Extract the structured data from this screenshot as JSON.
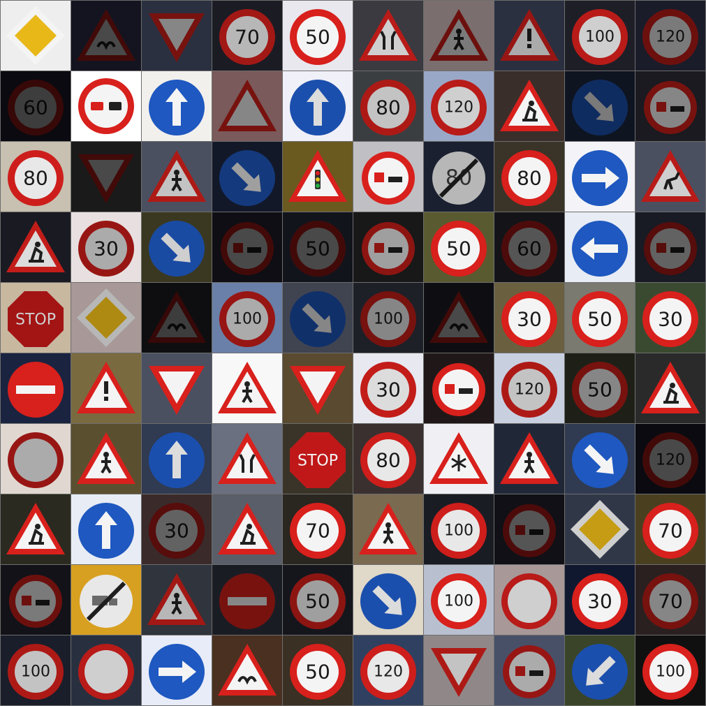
{
  "grid": {
    "rows": 10,
    "cols": 10,
    "cells": [
      {
        "type": "priority",
        "bg": "#eeeeee",
        "b": 1.0
      },
      {
        "type": "warning",
        "sym": "bumps",
        "bg": "#141420",
        "b": 0.3
      },
      {
        "type": "yield",
        "bg": "#2a3040",
        "b": 0.55
      },
      {
        "type": "speed",
        "text": "70",
        "bg": "#1b1b24",
        "b": 0.75
      },
      {
        "type": "speed",
        "text": "50",
        "bg": "#e8e8ee",
        "b": 1.0
      },
      {
        "type": "warning",
        "sym": "narrow",
        "bg": "#3a3a40",
        "b": 0.85
      },
      {
        "type": "warning",
        "sym": "person",
        "bg": "#7a6e6e",
        "b": 0.5
      },
      {
        "type": "warning",
        "sym": "!",
        "bg": "#2a3040",
        "b": 0.7
      },
      {
        "type": "speed",
        "text": "100",
        "bg": "#1e1e26",
        "b": 0.85
      },
      {
        "type": "speed",
        "text": "120",
        "bg": "#1a1c2a",
        "b": 0.5
      },
      {
        "type": "speed",
        "text": "60",
        "bg": "#0a0a10",
        "b": 0.25
      },
      {
        "type": "nopass",
        "bg": "#ffffff",
        "b": 1.0
      },
      {
        "type": "blue-arrow",
        "dir": "up",
        "bg": "#f2f0ec",
        "b": 1.0
      },
      {
        "type": "warning",
        "sym": "",
        "bg": "#7a5a5a",
        "b": 0.55
      },
      {
        "type": "blue-arrow",
        "dir": "up",
        "bg": "#f0f0f8",
        "b": 0.9
      },
      {
        "type": "speed",
        "text": "80",
        "bg": "#3a3e40",
        "b": 0.8
      },
      {
        "type": "speed",
        "text": "120",
        "bg": "#9aa8c8",
        "b": 0.85
      },
      {
        "type": "warning",
        "sym": "works",
        "bg": "#3a2e2a",
        "b": 1.0
      },
      {
        "type": "blue-arrow",
        "dir": "down-right",
        "bg": "#0e1420",
        "b": 0.5
      },
      {
        "type": "truck-nopass",
        "bg": "#1a1a20",
        "b": 0.55
      },
      {
        "type": "speed",
        "text": "80",
        "bg": "#c8c0b0",
        "b": 0.95
      },
      {
        "type": "yield",
        "bg": "#1a1a1a",
        "b": 0.3
      },
      {
        "type": "warning",
        "sym": "person",
        "bg": "#4a5060",
        "b": 0.8
      },
      {
        "type": "blue-arrow",
        "dir": "down-right",
        "bg": "#121828",
        "b": 0.65
      },
      {
        "type": "warning",
        "sym": "signal",
        "bg": "#6a5a20",
        "b": 1.0
      },
      {
        "type": "truck-nopass",
        "bg": "#c0c0c4",
        "b": 1.0
      },
      {
        "type": "end80",
        "bg": "#1a2030",
        "b": 0.75
      },
      {
        "type": "speed",
        "text": "80",
        "bg": "#3a3428",
        "b": 1.0
      },
      {
        "type": "blue-arrow",
        "dir": "right",
        "bg": "#f4f4f8",
        "b": 1.0
      },
      {
        "type": "warning",
        "sym": "deer",
        "bg": "#4a5060",
        "b": 0.85
      },
      {
        "type": "warning",
        "sym": "works",
        "bg": "#1a1a22",
        "b": 0.9
      },
      {
        "type": "speed",
        "text": "30",
        "bg": "#e8e0e0",
        "b": 0.7
      },
      {
        "type": "blue-arrow",
        "dir": "down-right",
        "bg": "#3a3820",
        "b": 0.85
      },
      {
        "type": "truck-nopass",
        "bg": "#0e0e14",
        "b": 0.3
      },
      {
        "type": "speed",
        "text": "50",
        "bg": "#12141c",
        "b": 0.3
      },
      {
        "type": "truck-nopass",
        "bg": "#181818",
        "b": 0.65
      },
      {
        "type": "speed",
        "text": "50",
        "bg": "#5a5a30",
        "b": 1.0
      },
      {
        "type": "speed",
        "text": "60",
        "bg": "#141418",
        "b": 0.35
      },
      {
        "type": "blue-arrow",
        "dir": "left",
        "bg": "#e8ecf4",
        "b": 1.0
      },
      {
        "type": "truck-nopass",
        "bg": "#181a24",
        "b": 0.4
      },
      {
        "type": "stop",
        "text": "STOP",
        "bg": "#c8b8a0",
        "b": 0.85
      },
      {
        "type": "priority",
        "bg": "#a89898",
        "b": 0.75
      },
      {
        "type": "warning",
        "sym": "bumps",
        "bg": "#0e0e10",
        "b": 0.25
      },
      {
        "type": "speed",
        "text": "100",
        "bg": "#6a80a8",
        "b": 0.7
      },
      {
        "type": "blue-arrow",
        "dir": "down-right",
        "bg": "#404450",
        "b": 0.55
      },
      {
        "type": "speed",
        "text": "100",
        "bg": "#1e2028",
        "b": 0.55
      },
      {
        "type": "warning",
        "sym": "bumps",
        "bg": "#0e0e12",
        "b": 0.3
      },
      {
        "type": "speed",
        "text": "30",
        "bg": "#6a6040",
        "b": 1.0
      },
      {
        "type": "speed",
        "text": "50",
        "bg": "#7a7a70",
        "b": 1.0
      },
      {
        "type": "speed",
        "text": "30",
        "bg": "#3a4a30",
        "b": 1.0
      },
      {
        "type": "noentry",
        "bg": "#1a2440",
        "b": 1.0
      },
      {
        "type": "warning",
        "sym": "!",
        "bg": "#7a6a40",
        "b": 1.0
      },
      {
        "type": "yield",
        "bg": "#4a5060",
        "b": 1.0
      },
      {
        "type": "warning",
        "sym": "person",
        "bg": "#f8f8f8",
        "b": 1.0
      },
      {
        "type": "yield",
        "bg": "#5a4a30",
        "b": 1.0
      },
      {
        "type": "speed",
        "text": "30",
        "bg": "#e8e8f0",
        "b": 0.9
      },
      {
        "type": "truck-nopass",
        "bg": "#201818",
        "b": 1.0
      },
      {
        "type": "speed",
        "text": "120",
        "bg": "#c8d0e0",
        "b": 0.8
      },
      {
        "type": "speed",
        "text": "50",
        "bg": "#1e2018",
        "b": 0.55
      },
      {
        "type": "warning",
        "sym": "works",
        "bg": "#2a2a2a",
        "b": 1.0
      },
      {
        "type": "circle-plain",
        "bg": "#e0d8d0",
        "b": 0.7
      },
      {
        "type": "warning",
        "sym": "person",
        "bg": "#5a5030",
        "b": 1.0
      },
      {
        "type": "blue-arrow",
        "dir": "up",
        "bg": "#303a50",
        "b": 0.9
      },
      {
        "type": "warning",
        "sym": "narrow",
        "bg": "#6a7080",
        "b": 1.0
      },
      {
        "type": "stop",
        "text": "STOP",
        "bg": "#3a3428",
        "b": 1.0
      },
      {
        "type": "speed",
        "text": "80",
        "bg": "#3a3030",
        "b": 0.95
      },
      {
        "type": "warning",
        "sym": "snow",
        "bg": "#f0f0f4",
        "b": 1.0
      },
      {
        "type": "warning",
        "sym": "walker",
        "bg": "#202838",
        "b": 1.0
      },
      {
        "type": "blue-arrow",
        "dir": "down-right",
        "bg": "#303a50",
        "b": 1.0
      },
      {
        "type": "speed",
        "text": "120",
        "bg": "#0a0a10",
        "b": 0.3
      },
      {
        "type": "warning",
        "sym": "works",
        "bg": "#2a2a20",
        "b": 1.0
      },
      {
        "type": "blue-arrow",
        "dir": "up",
        "bg": "#e8ecf4",
        "b": 1.0
      },
      {
        "type": "speed",
        "text": "30",
        "bg": "#3a2a2a",
        "b": 0.4
      },
      {
        "type": "warning",
        "sym": "works",
        "bg": "#5a5e68",
        "b": 1.0
      },
      {
        "type": "speed",
        "text": "70",
        "bg": "#2a2620",
        "b": 1.0
      },
      {
        "type": "warning",
        "sym": "person",
        "bg": "#7a6a50",
        "b": 1.0
      },
      {
        "type": "speed",
        "text": "100",
        "bg": "#1a1c24",
        "b": 0.95
      },
      {
        "type": "truck-nopass",
        "bg": "#101016",
        "b": 0.35
      },
      {
        "type": "priority",
        "bg": "#303848",
        "b": 0.85
      },
      {
        "type": "speed",
        "text": "70",
        "bg": "#4a4020",
        "b": 1.0
      },
      {
        "type": "truck-nopass",
        "bg": "#121218",
        "b": 0.5
      },
      {
        "type": "end-truck",
        "bg": "#d8a020",
        "b": 0.95
      },
      {
        "type": "warning",
        "sym": "person",
        "bg": "#30343c",
        "b": 0.75
      },
      {
        "type": "noentry",
        "bg": "#1a1c24",
        "b": 0.55
      },
      {
        "type": "speed",
        "text": "50",
        "bg": "#14161c",
        "b": 0.65
      },
      {
        "type": "blue-arrow",
        "dir": "down-right",
        "bg": "#e0d8c8",
        "b": 0.9
      },
      {
        "type": "speed",
        "text": "100",
        "bg": "#b8c0d0",
        "b": 1.0
      },
      {
        "type": "circle-plain",
        "bg": "#a89898",
        "b": 0.85
      },
      {
        "type": "speed",
        "text": "30",
        "bg": "#101830",
        "b": 1.0
      },
      {
        "type": "speed",
        "text": "70",
        "bg": "#2a2020",
        "b": 0.55
      },
      {
        "type": "speed",
        "text": "100",
        "bg": "#1a1e2a",
        "b": 0.8
      },
      {
        "type": "circle-plain",
        "bg": "#283040",
        "b": 0.85
      },
      {
        "type": "blue-arrow",
        "dir": "right",
        "bg": "#e8ecf8",
        "b": 1.0
      },
      {
        "type": "warning",
        "sym": "bumps",
        "bg": "#4a3020",
        "b": 1.0
      },
      {
        "type": "speed",
        "text": "50",
        "bg": "#3a3024",
        "b": 1.0
      },
      {
        "type": "speed",
        "text": "120",
        "bg": "#304060",
        "b": 0.95
      },
      {
        "type": "yield",
        "bg": "#908888",
        "b": 0.8
      },
      {
        "type": "truck-nopass",
        "bg": "#485068",
        "b": 0.7
      },
      {
        "type": "blue-arrow",
        "dir": "down-left",
        "bg": "#3a4428",
        "b": 0.9
      },
      {
        "type": "speed",
        "text": "100",
        "bg": "#101010",
        "b": 1.0
      }
    ]
  }
}
